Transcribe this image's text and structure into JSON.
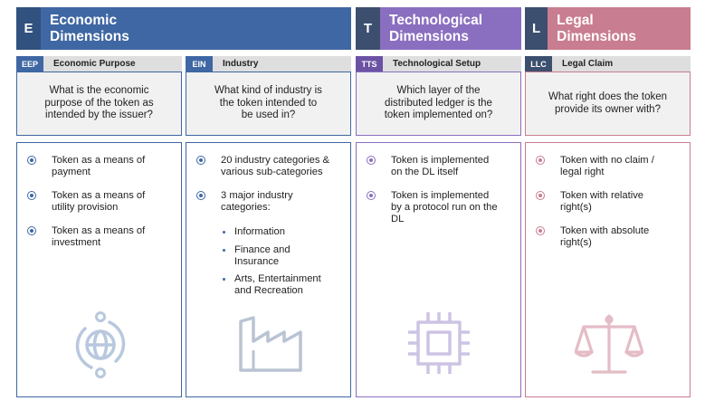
{
  "colors": {
    "economic": "#3f67a3",
    "economic_dark": "#31517f",
    "technological": "#8a6fc0",
    "technological_dark": "#6b52a3",
    "legal": "#c97d90",
    "legal_dark": "#a55e71",
    "icon_economic": "#b8c8de",
    "icon_industry": "#b9c3d3",
    "icon_tech": "#cdc3e3",
    "icon_legal": "#e4bcc6"
  },
  "dimensions": {
    "economic": {
      "letter": "E",
      "title": "Economic Dimensions"
    },
    "technological": {
      "letter": "T",
      "title": "Technological Dimensions"
    },
    "legal": {
      "letter": "L",
      "title": "Legal Dimensions"
    }
  },
  "columns": {
    "eep": {
      "code": "EEP",
      "label": "Economic Purpose",
      "question": "What is the economic purpose of the token as intended by the issuer?",
      "options": [
        "Token as a means of payment",
        "Token as a means of utility provision",
        "Token as a means of investment"
      ],
      "icon": "globe-exchange-icon"
    },
    "ein": {
      "code": "EIN",
      "label": "Industry",
      "question": "What kind of industry is the token intended to be used in?",
      "options": [
        "20 industry categories & various sub-categories",
        "3 major industry categories:"
      ],
      "sub_options": [
        "Information",
        "Finance and Insurance",
        "Arts, Entertainment and Recreation"
      ],
      "icon": "factory-icon"
    },
    "tts": {
      "code": "TTS",
      "label": "Technological Setup",
      "question": "Which layer of the distributed ledger is the token implemented on?",
      "options": [
        "Token is implemented on the DL itself",
        "Token is implemented by a protocol run on the DL"
      ],
      "icon": "cpu-chip-icon"
    },
    "llc": {
      "code": "LLC",
      "label": "Legal Claim",
      "question": "What right does the token provide its owner with?",
      "options": [
        "Token with no claim / legal right",
        "Token with relative right(s)",
        "Token with absolute right(s)"
      ],
      "icon": "scales-icon"
    }
  }
}
